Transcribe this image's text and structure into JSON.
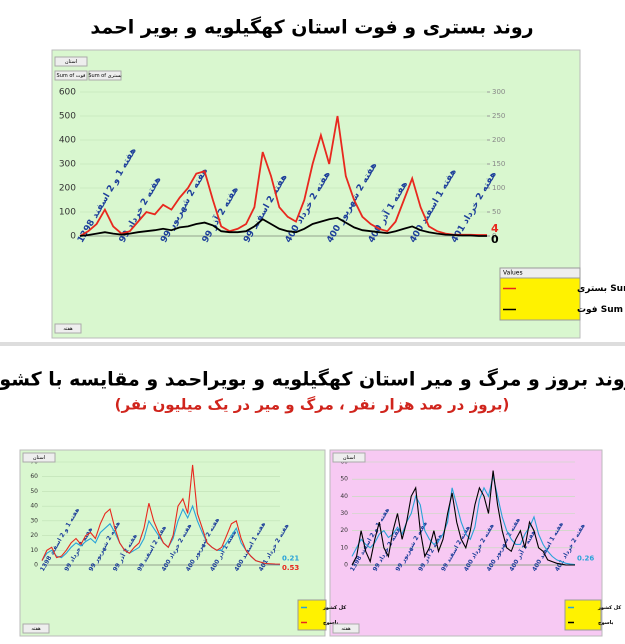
{
  "titles": {
    "top": "روند بستری و فوت استان کهگیلویه و بویر احمد",
    "middle": "روند بروز و مرگ و میر استان کهگیلویه و بویراحمد و مقایسه با کشور",
    "subtitle": "(بروز در صد هزار نفر ، مرگ و میر در یک میلیون نفر)"
  },
  "chart_data": [
    {
      "type": "line",
      "filters": [
        "استان",
        "Sum of فوت",
        "Sum of بستری"
      ],
      "axis_field": "هفته",
      "legend_title": "Values",
      "categories": [
        "هفته 1 و 2 اسفند 1398",
        null,
        null,
        null,
        null,
        "هفته 2 خرداد 99",
        null,
        null,
        null,
        null,
        "هفته 2 شهریور 99",
        null,
        null,
        null,
        null,
        "هفته 2 آذر 99",
        null,
        null,
        null,
        null,
        "هفته 2 اسفند 99",
        null,
        null,
        null,
        null,
        "هفته 2 خرداد 400",
        null,
        null,
        null,
        null,
        "هفته 2 شهریور 400",
        null,
        null,
        null,
        null,
        "هفته 1 آذر 400",
        null,
        null,
        null,
        null,
        "هفته 1 اسفند 400",
        null,
        null,
        null,
        null,
        "هفته 2 خرداد 401",
        null,
        null,
        null,
        null
      ],
      "ylim": [
        0,
        600
      ],
      "yticks": [
        0,
        100,
        200,
        300,
        400,
        500,
        600
      ],
      "y2lim": [
        0,
        300
      ],
      "y2ticks": [
        0,
        50,
        100,
        150,
        200,
        250,
        300
      ],
      "series": [
        {
          "name": "Sum of بستری",
          "color": "#e8281e",
          "label_last": true,
          "values": [
            0,
            20,
            50,
            110,
            40,
            10,
            20,
            60,
            100,
            90,
            130,
            110,
            160,
            200,
            260,
            270,
            150,
            40,
            20,
            30,
            50,
            120,
            350,
            250,
            120,
            80,
            60,
            150,
            300,
            420,
            300,
            500,
            250,
            150,
            80,
            50,
            30,
            20,
            60,
            150,
            240,
            120,
            40,
            20,
            10,
            5,
            5,
            5,
            4,
            4
          ]
        },
        {
          "name": "Sum of فوت",
          "color": "#000000",
          "axis": "y2",
          "label_last": true,
          "values": [
            0,
            2,
            5,
            8,
            5,
            3,
            5,
            8,
            10,
            12,
            15,
            12,
            18,
            20,
            25,
            28,
            22,
            10,
            8,
            8,
            10,
            20,
            35,
            25,
            15,
            10,
            8,
            15,
            25,
            30,
            35,
            38,
            28,
            18,
            12,
            10,
            8,
            6,
            10,
            15,
            20,
            12,
            8,
            5,
            3,
            2,
            1,
            1,
            0,
            0
          ]
        }
      ]
    },
    {
      "type": "line",
      "axis_field": "هفته",
      "filters": [
        "استان"
      ],
      "categories": [
        "هفته 1 و 2 اسفند 1398",
        null,
        null,
        null,
        null,
        "هفته 2 خرداد 99",
        null,
        null,
        null,
        null,
        "هفته 2 شهریور 99",
        null,
        null,
        null,
        null,
        "هفته 2 آذر 99",
        null,
        null,
        null,
        null,
        "هفته 2 اسفند 99",
        null,
        null,
        null,
        null,
        "هفته 2 خرداد 400",
        null,
        null,
        null,
        null,
        "هفته 2 شهریور 400",
        null,
        null,
        null,
        null,
        "هفته 1 آذر 400",
        null,
        null,
        null,
        null,
        "هفته 1 اسفند 400",
        null,
        null,
        null,
        null,
        "هفته 2 خرداد 401",
        null,
        null,
        null,
        null
      ],
      "ylim": [
        0,
        70
      ],
      "yticks": [
        0,
        10,
        20,
        30,
        40,
        50,
        60,
        70
      ],
      "series": [
        {
          "name": "کل کشور",
          "color": "#29a3d8",
          "label_last": true,
          "values": [
            3,
            8,
            10,
            6,
            5,
            8,
            12,
            15,
            13,
            16,
            18,
            15,
            22,
            25,
            28,
            22,
            15,
            10,
            8,
            10,
            12,
            18,
            30,
            25,
            20,
            15,
            12,
            18,
            30,
            38,
            32,
            40,
            30,
            22,
            15,
            12,
            10,
            10,
            15,
            20,
            25,
            15,
            10,
            6,
            3,
            2,
            1,
            0.5,
            0.3,
            0.21
          ]
        },
        {
          "name": "یاسوج",
          "color": "#e8281e",
          "label_last": true,
          "values": [
            3,
            10,
            12,
            5,
            6,
            10,
            15,
            18,
            14,
            20,
            22,
            18,
            28,
            35,
            38,
            25,
            15,
            10,
            8,
            12,
            15,
            25,
            42,
            30,
            22,
            15,
            12,
            20,
            40,
            45,
            35,
            68,
            35,
            25,
            15,
            12,
            10,
            12,
            20,
            28,
            30,
            18,
            10,
            6,
            3,
            2,
            1,
            0.8,
            0.6,
            0.53
          ]
        }
      ]
    },
    {
      "type": "line",
      "axis_field": "هفته",
      "filters": [
        "استان"
      ],
      "categories": [
        "هفته 1 و 2 اسفند 1398",
        null,
        null,
        null,
        null,
        "هفته 2 خرداد 99",
        null,
        null,
        null,
        null,
        "هفته 2 شهریور 99",
        null,
        null,
        null,
        null,
        "هفته 2 آذر 99",
        null,
        null,
        null,
        null,
        "هفته 2 اسفند 99",
        null,
        null,
        null,
        null,
        "هفته 2 خرداد 400",
        null,
        null,
        null,
        null,
        "هفته 2 شهریور 400",
        null,
        null,
        null,
        null,
        "هفته 1 آذر 400",
        null,
        null,
        null,
        null,
        "هفته 1 اسفند 400",
        null,
        null,
        null,
        null,
        "هفته 2 خرداد 401",
        null,
        null,
        null,
        null
      ],
      "ylim": [
        0,
        60
      ],
      "yticks": [
        0,
        10,
        20,
        30,
        40,
        50,
        60
      ],
      "series": [
        {
          "name": "کل کشور",
          "color": "#29a3d8",
          "label_last": true,
          "values": [
            5,
            10,
            15,
            12,
            10,
            13,
            18,
            20,
            16,
            18,
            22,
            18,
            25,
            30,
            40,
            35,
            20,
            15,
            12,
            14,
            18,
            25,
            45,
            35,
            25,
            18,
            15,
            22,
            38,
            45,
            40,
            52,
            40,
            28,
            20,
            15,
            12,
            12,
            18,
            22,
            28,
            18,
            12,
            8,
            5,
            3,
            2,
            1,
            0.5,
            0.26
          ]
        },
        {
          "name": "یاسوج",
          "color": "#000000",
          "values": [
            0,
            5,
            20,
            8,
            2,
            15,
            25,
            10,
            5,
            20,
            30,
            15,
            25,
            40,
            45,
            20,
            5,
            10,
            20,
            8,
            15,
            30,
            42,
            25,
            15,
            10,
            20,
            35,
            45,
            40,
            30,
            55,
            35,
            20,
            10,
            8,
            15,
            20,
            10,
            25,
            20,
            10,
            8,
            3,
            2,
            1,
            0.5,
            0,
            0,
            0
          ]
        }
      ]
    }
  ]
}
